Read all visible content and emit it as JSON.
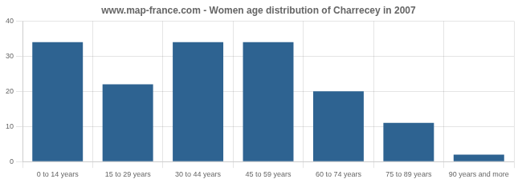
{
  "chart_data": {
    "type": "bar",
    "title": "www.map-france.com - Women age distribution of Charrecey in 2007",
    "categories": [
      "0 to 14 years",
      "15 to 29 years",
      "30 to 44 years",
      "45 to 59 years",
      "60 to 74 years",
      "75 to 89 years",
      "90 years and more"
    ],
    "values": [
      34,
      22,
      34,
      34,
      20,
      11,
      2
    ],
    "color": "#2e6391",
    "ylim": [
      0,
      40
    ],
    "yticks": [
      0,
      10,
      20,
      30,
      40
    ],
    "grid": true
  }
}
